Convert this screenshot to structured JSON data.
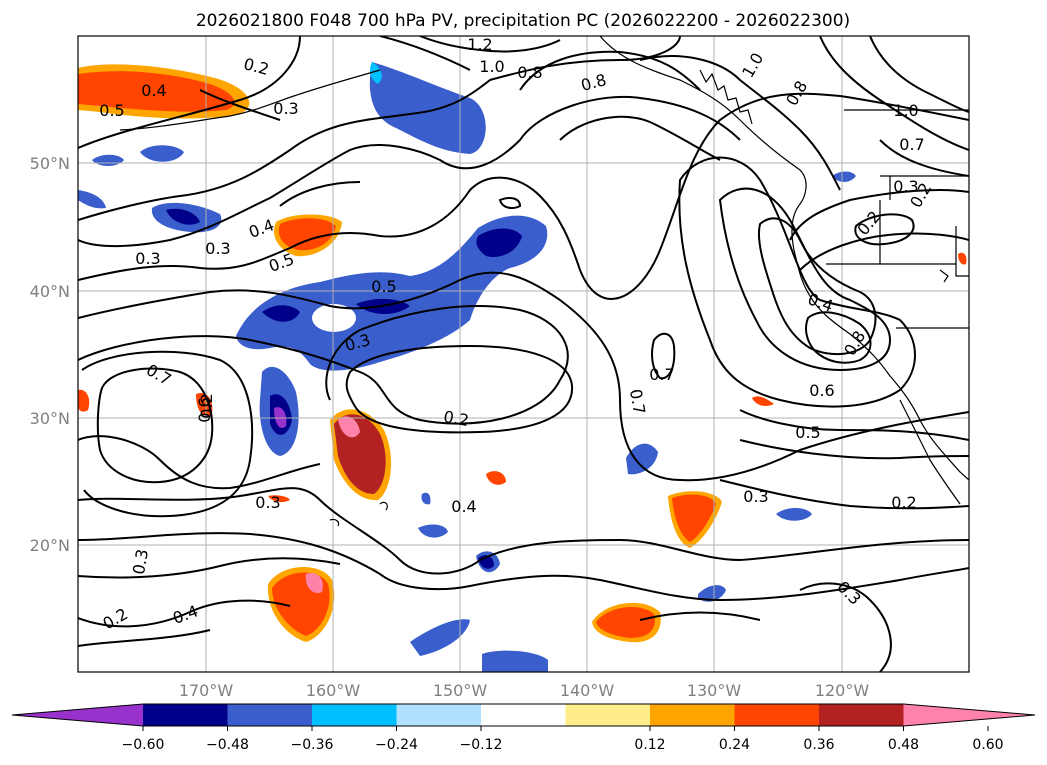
{
  "title": "2026021800 F048 700 hPa PV, precipitation PC (2026022200 - 2026022300)",
  "map": {
    "lat_labels": [
      "50°N",
      "40°N",
      "30°N",
      "20°N"
    ],
    "lon_labels": [
      "170°W",
      "160°W",
      "150°W",
      "140°W",
      "130°W",
      "120°W"
    ],
    "extent": {
      "lon": [
        -180,
        -110
      ],
      "lat": [
        10,
        60
      ]
    },
    "grid": true,
    "coastline_color": "#000000"
  },
  "pv_contours": {
    "color": "#000000",
    "labels": [
      "0.4",
      "0.5",
      "0.2",
      "0.3",
      "1.2",
      "1.0",
      "0.8",
      "0.8",
      "1.0",
      "0.8",
      "1.0",
      "0.7",
      "0.3",
      "0.2",
      "0.4",
      "0.5",
      "0.3",
      "0.5",
      "0.3",
      "0.7",
      "0.4",
      "0.7",
      "0.8",
      "0.7",
      "0.6",
      "0.4",
      "0.5",
      "0.2",
      "0.3",
      "0.3",
      "0.2",
      "0.4",
      "0.2",
      "0.3",
      "0.3",
      "0.2",
      "0.6",
      "0.2",
      "0.3"
    ]
  },
  "precip_colorbar": {
    "ticks": [
      "−0.60",
      "−0.48",
      "−0.36",
      "−0.24",
      "−0.12",
      "0.12",
      "0.24",
      "0.36",
      "0.48",
      "0.60"
    ],
    "colors": [
      "#9932CC",
      "#00008B",
      "#3A5FCD",
      "#00BFFF",
      "#B0E2FF",
      "#FFFFFF",
      "#FFEC8B",
      "#FFA500",
      "#FF4500",
      "#B22222",
      "#FF82AB"
    ]
  }
}
